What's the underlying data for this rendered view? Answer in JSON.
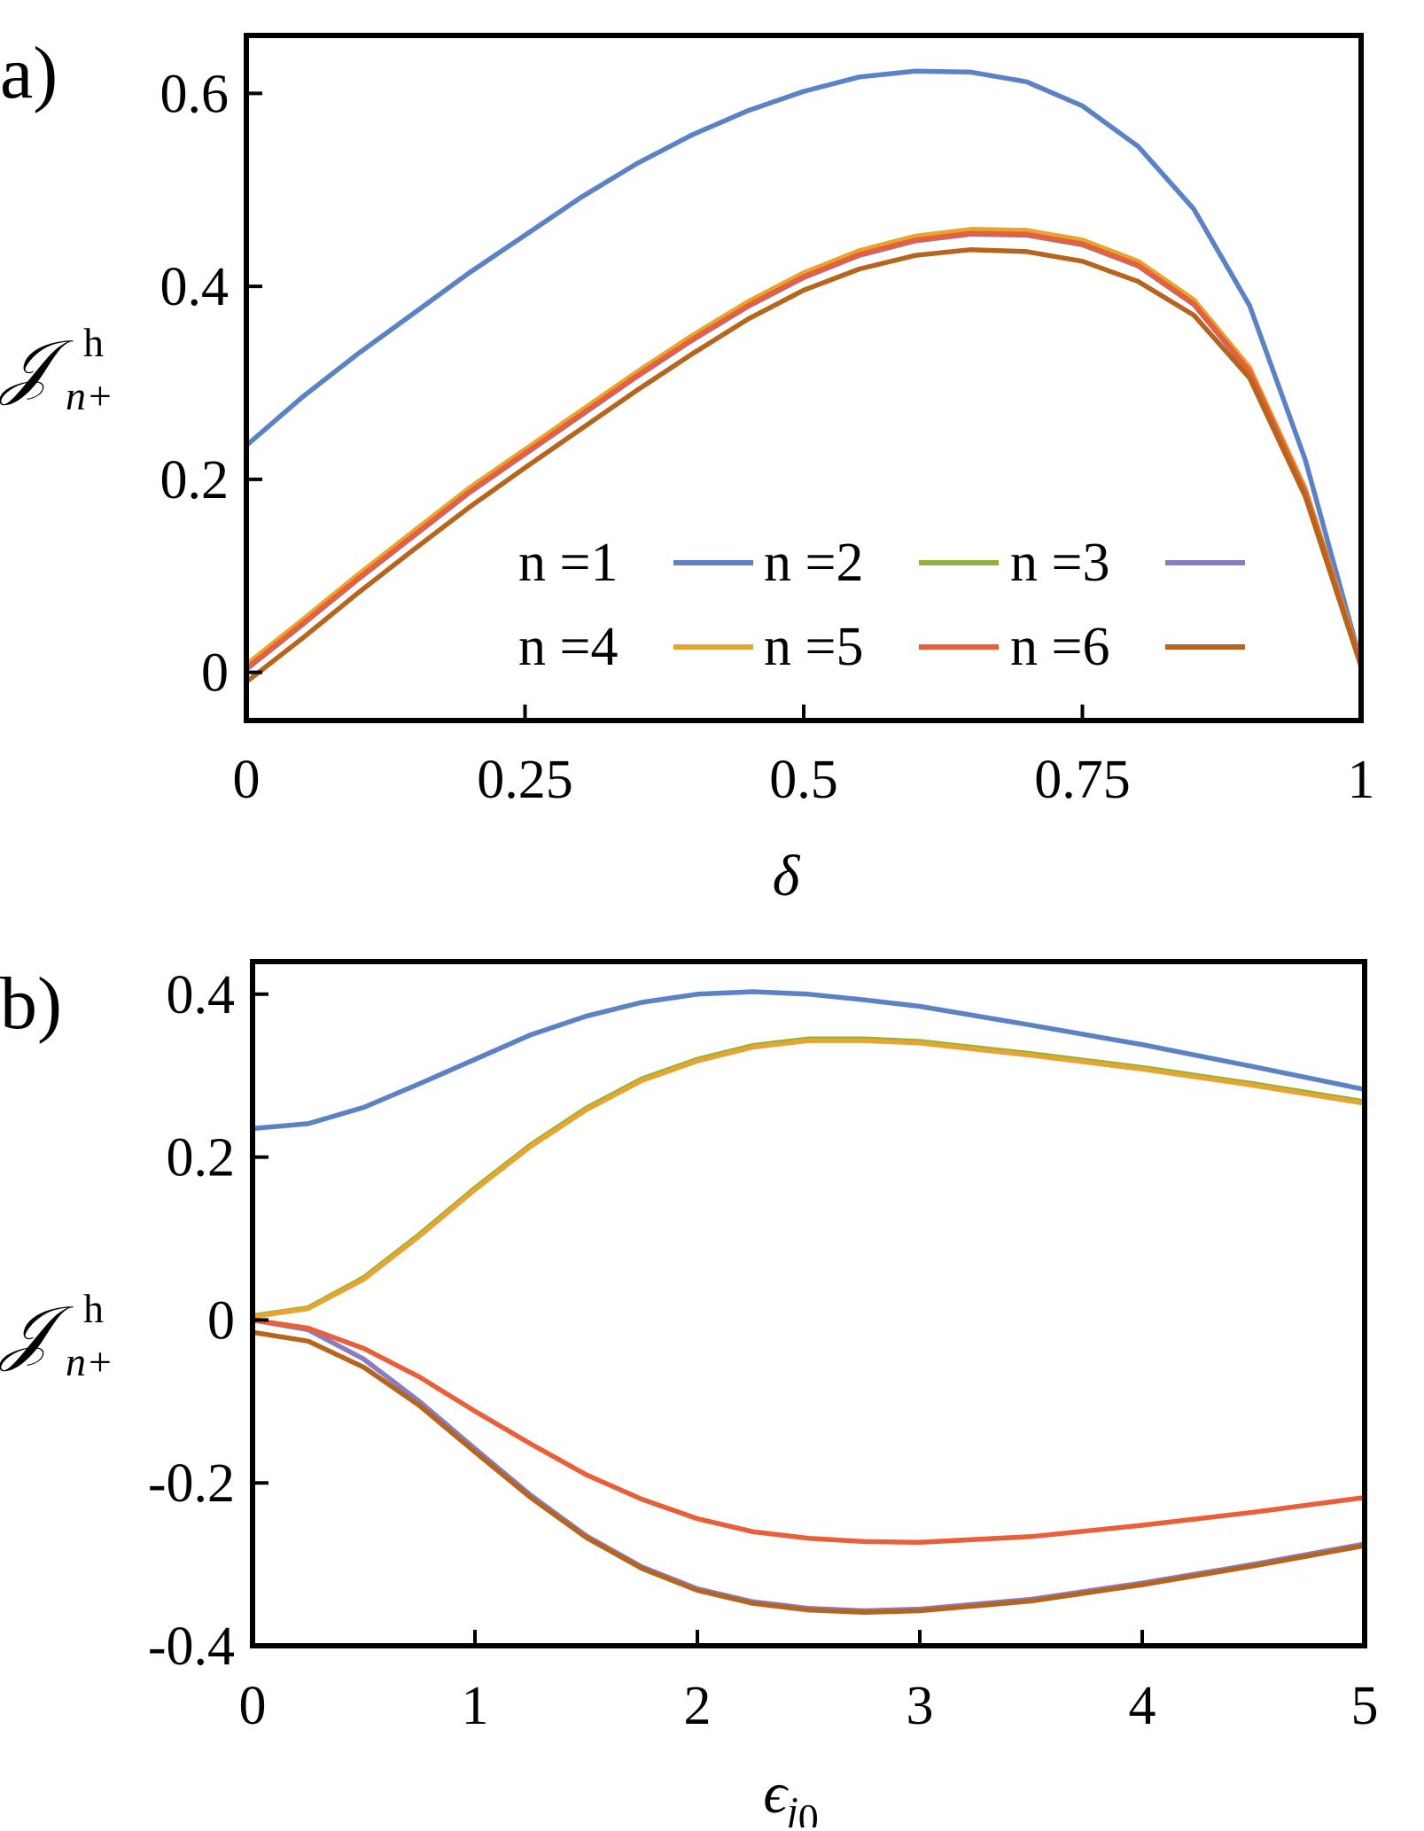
{
  "chart_data": [
    {
      "panel_label": "a)",
      "type": "line",
      "xlabel": "δ",
      "ylabel": {
        "main": "𝒥",
        "sup": "h",
        "sub": "n+"
      },
      "xlim": [
        0,
        1
      ],
      "ylim": [
        -0.05,
        0.66
      ],
      "xticks": [
        0,
        0.25,
        0.5,
        0.75,
        1
      ],
      "xtick_labels": [
        "0",
        "0.25",
        "0.5",
        "0.75",
        "1"
      ],
      "yticks": [
        0,
        0.2,
        0.4,
        0.6
      ],
      "ytick_labels": [
        "0",
        "0.2",
        "0.4",
        "0.6"
      ],
      "legend_position": "lower-right",
      "legend": [
        {
          "label": "n =1",
          "color": "#5b82c4"
        },
        {
          "label": "n =2",
          "color": "#8cb43a"
        },
        {
          "label": "n =3",
          "color": "#8a7cc0"
        },
        {
          "label": "n =4",
          "color": "#e6a530"
        },
        {
          "label": "n =5",
          "color": "#e8603a"
        },
        {
          "label": "n =6",
          "color": "#b5651d"
        }
      ],
      "x": [
        0,
        0.05,
        0.1,
        0.15,
        0.2,
        0.25,
        0.3,
        0.35,
        0.4,
        0.45,
        0.5,
        0.55,
        0.6,
        0.65,
        0.7,
        0.75,
        0.8,
        0.85,
        0.9,
        0.95,
        1.0
      ],
      "series": [
        {
          "name": "n =1",
          "color": "#5b82c4",
          "values": [
            0.235,
            0.285,
            0.33,
            0.372,
            0.414,
            0.453,
            0.492,
            0.527,
            0.557,
            0.582,
            0.602,
            0.617,
            0.623,
            0.622,
            0.612,
            0.587,
            0.545,
            0.48,
            0.38,
            0.22,
            0.01
          ]
        },
        {
          "name": "n =2",
          "color": "#8cb43a",
          "values": [
            0.007,
            0.053,
            0.1,
            0.145,
            0.19,
            0.23,
            0.27,
            0.31,
            0.348,
            0.383,
            0.413,
            0.436,
            0.451,
            0.458,
            0.457,
            0.447,
            0.425,
            0.385,
            0.315,
            0.19,
            0.01
          ]
        },
        {
          "name": "n =3",
          "color": "#8a7cc0",
          "values": [
            0.003,
            0.049,
            0.096,
            0.141,
            0.186,
            0.226,
            0.266,
            0.306,
            0.344,
            0.379,
            0.409,
            0.432,
            0.447,
            0.454,
            0.453,
            0.443,
            0.421,
            0.381,
            0.311,
            0.186,
            0.008
          ]
        },
        {
          "name": "n =4",
          "color": "#e6a530",
          "values": [
            0.008,
            0.054,
            0.101,
            0.146,
            0.191,
            0.231,
            0.271,
            0.311,
            0.349,
            0.384,
            0.414,
            0.437,
            0.452,
            0.459,
            0.458,
            0.448,
            0.426,
            0.386,
            0.316,
            0.19,
            0.01
          ]
        },
        {
          "name": "n =5",
          "color": "#e8603a",
          "values": [
            0.004,
            0.05,
            0.097,
            0.142,
            0.187,
            0.227,
            0.267,
            0.307,
            0.345,
            0.38,
            0.41,
            0.433,
            0.448,
            0.455,
            0.454,
            0.444,
            0.422,
            0.382,
            0.312,
            0.187,
            0.009
          ]
        },
        {
          "name": "n =6",
          "color": "#b5651d",
          "values": [
            -0.01,
            0.035,
            0.082,
            0.127,
            0.171,
            0.212,
            0.252,
            0.292,
            0.33,
            0.366,
            0.396,
            0.418,
            0.432,
            0.438,
            0.436,
            0.426,
            0.405,
            0.37,
            0.305,
            0.182,
            0.006
          ]
        }
      ]
    },
    {
      "panel_label": "b)",
      "type": "line",
      "xlabel": "ϵ",
      "xlabel_sub": "j",
      "xlabel_subsub": "0",
      "ylabel": {
        "main": "𝒥",
        "sup": "h",
        "sub": "n+"
      },
      "xlim": [
        0,
        5
      ],
      "ylim": [
        -0.4,
        0.44
      ],
      "xticks": [
        0,
        1,
        2,
        3,
        4,
        5
      ],
      "xtick_labels": [
        "0",
        "1",
        "2",
        "3",
        "4",
        "5"
      ],
      "yticks": [
        -0.4,
        -0.2,
        0,
        0.2,
        0.4
      ],
      "ytick_labels": [
        "-0.4",
        "-0.2",
        "0",
        "0.2",
        "0.4"
      ],
      "x": [
        0,
        0.25,
        0.5,
        0.75,
        1.0,
        1.25,
        1.5,
        1.75,
        2.0,
        2.25,
        2.5,
        2.75,
        3.0,
        3.5,
        4.0,
        4.5,
        5.0
      ],
      "series": [
        {
          "name": "n =1",
          "color": "#5b82c4",
          "values": [
            0.235,
            0.241,
            0.261,
            0.29,
            0.32,
            0.35,
            0.373,
            0.39,
            0.4,
            0.403,
            0.4,
            0.393,
            0.385,
            0.362,
            0.338,
            0.311,
            0.283
          ]
        },
        {
          "name": "n =2",
          "color": "#8cb43a",
          "values": [
            0.005,
            0.015,
            0.052,
            0.105,
            0.162,
            0.215,
            0.26,
            0.296,
            0.32,
            0.337,
            0.345,
            0.345,
            0.342,
            0.327,
            0.31,
            0.29,
            0.268
          ]
        },
        {
          "name": "n =3",
          "color": "#8a7cc0",
          "values": [
            0.0,
            -0.012,
            -0.048,
            -0.1,
            -0.158,
            -0.215,
            -0.265,
            -0.303,
            -0.33,
            -0.346,
            -0.354,
            -0.357,
            -0.355,
            -0.343,
            -0.323,
            -0.3,
            -0.275
          ]
        },
        {
          "name": "n =4",
          "color": "#e6a530",
          "values": [
            0.004,
            0.014,
            0.05,
            0.103,
            0.16,
            0.213,
            0.258,
            0.294,
            0.318,
            0.335,
            0.343,
            0.343,
            0.34,
            0.325,
            0.308,
            0.288,
            0.266
          ]
        },
        {
          "name": "n =5",
          "color": "#e8603a",
          "values": [
            0.0,
            -0.01,
            -0.035,
            -0.07,
            -0.112,
            -0.152,
            -0.19,
            -0.22,
            -0.244,
            -0.26,
            -0.268,
            -0.272,
            -0.273,
            -0.266,
            -0.252,
            -0.236,
            -0.218
          ]
        },
        {
          "name": "n =6",
          "color": "#b5651d",
          "values": [
            -0.015,
            -0.026,
            -0.058,
            -0.105,
            -0.162,
            -0.218,
            -0.267,
            -0.305,
            -0.332,
            -0.348,
            -0.356,
            -0.359,
            -0.357,
            -0.345,
            -0.325,
            -0.302,
            -0.277
          ]
        }
      ]
    }
  ]
}
